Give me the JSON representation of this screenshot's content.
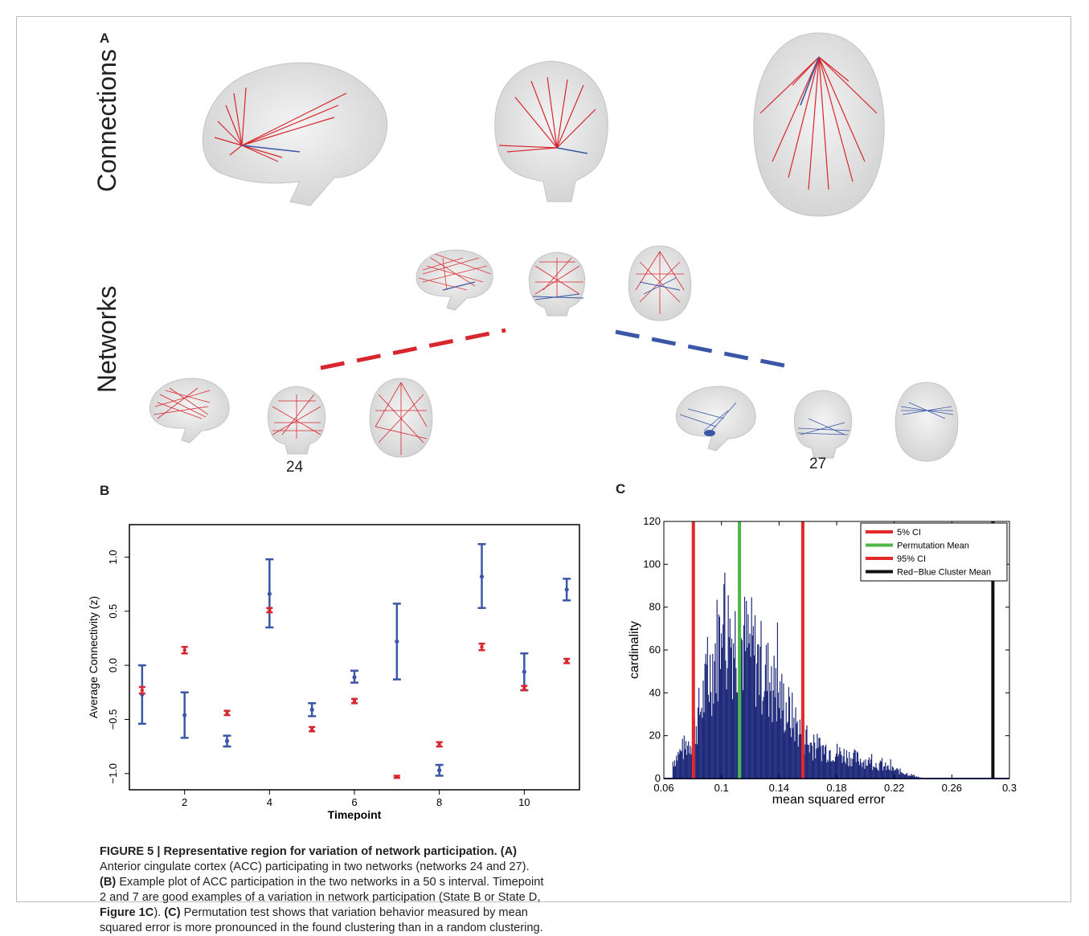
{
  "panel_a": {
    "letter": "A",
    "row_connections": "Connections",
    "row_networks": "Networks",
    "network_left_label": "24",
    "network_right_label": "27"
  },
  "panel_b": {
    "letter": "B"
  },
  "panel_c": {
    "letter": "C"
  },
  "caption": {
    "figure_label": "FIGURE 5 | Representative region for variation of network participation.",
    "a_tag": "(A)",
    "a_text": " Anterior cingulate cortex (ACC) participating in two networks (networks 24 and 27). ",
    "b_tag": "(B)",
    "b_text": " Example plot of ACC participation in the two networks in a 50 s interval. Timepoint 2 and 7 are good examples of a variation in network participation (State B or State D, ",
    "fig_ref": "Figure 1C",
    "b_text2": "). ",
    "c_tag": "(C)",
    "c_text": " Permutation test shows that variation behavior measured by mean squared error is more pronounced in the found clustering than in a random clustering."
  },
  "chart_data": [
    {
      "type": "scatter",
      "title": "",
      "xlabel": "Timepoint",
      "ylabel": "Average Connectivity (z)",
      "xlim": [
        0.7,
        11.3
      ],
      "ylim": [
        -1.15,
        1.3
      ],
      "xticks": [
        2,
        4,
        6,
        8,
        10
      ],
      "yticks": [
        -1.0,
        -0.5,
        0.0,
        0.5,
        1.0
      ],
      "ytick_labels": [
        "−1.0",
        "−0.5",
        "0.0",
        "0.5",
        "1.0"
      ],
      "grid": false,
      "colors": {
        "blue": "#3a57a7",
        "red": "#d7262d"
      },
      "series": [
        {
          "color": "blue",
          "x": [
            1,
            2,
            3,
            4,
            5,
            6,
            7,
            8,
            9,
            10,
            11
          ],
          "y": [
            -0.27,
            -0.46,
            -0.7,
            0.66,
            -0.41,
            -0.11,
            0.22,
            -0.97,
            0.82,
            -0.06,
            0.7
          ],
          "lo": [
            -0.54,
            -0.67,
            -0.75,
            0.35,
            -0.47,
            -0.16,
            -0.13,
            -1.02,
            0.53,
            -0.23,
            0.6
          ],
          "hi": [
            0.0,
            -0.25,
            -0.65,
            0.98,
            -0.35,
            -0.05,
            0.57,
            -0.92,
            1.12,
            0.11,
            0.8
          ]
        },
        {
          "color": "red",
          "x": [
            1,
            2,
            3,
            4,
            5,
            6,
            7,
            8,
            9,
            10,
            11
          ],
          "y": [
            -0.23,
            0.14,
            -0.44,
            0.51,
            -0.59,
            -0.33,
            -1.03,
            -0.73,
            0.17,
            -0.21,
            0.04
          ],
          "lo": [
            -0.26,
            0.11,
            -0.46,
            0.49,
            -0.61,
            -0.35,
            -1.04,
            -0.75,
            0.14,
            -0.23,
            0.02
          ],
          "hi": [
            -0.2,
            0.17,
            -0.42,
            0.53,
            -0.57,
            -0.31,
            -1.02,
            -0.71,
            0.2,
            -0.19,
            0.06
          ]
        }
      ]
    },
    {
      "type": "bar",
      "title": "",
      "xlabel": "mean squared error",
      "ylabel": "cardinality",
      "xlim": [
        0.06,
        0.3
      ],
      "ylim": [
        0,
        120
      ],
      "xticks": [
        0.06,
        0.1,
        0.14,
        0.18,
        0.22,
        0.26,
        0.3
      ],
      "yticks": [
        0,
        20,
        40,
        60,
        80,
        100,
        120
      ],
      "legend_position": "top-right",
      "histogram_color": "#1f2a7a",
      "histogram_range": [
        0.066,
        0.24
      ],
      "lines": [
        {
          "name": " 5% CI",
          "x": 0.0805,
          "color": "#e3272a"
        },
        {
          "name": "Permutation Mean",
          "x": 0.1125,
          "color": "#4db848"
        },
        {
          "name": "95% CI",
          "x": 0.1565,
          "color": "#e3272a"
        },
        {
          "name": "Red−Blue Cluster Mean",
          "x": 0.2885,
          "color": "#111111"
        }
      ]
    }
  ]
}
